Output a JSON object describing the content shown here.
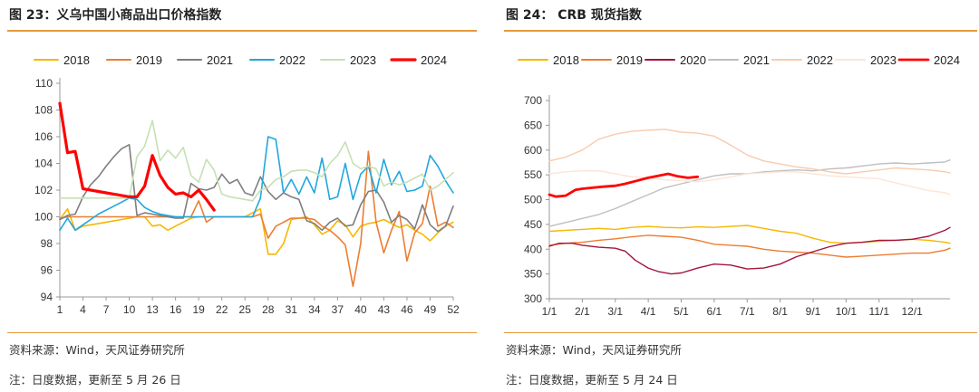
{
  "left": {
    "title": "图 23：义乌中国小商品出口价格指数",
    "source": "资料来源：Wind，天风证券研究所",
    "note": "注：日度数据，更新至 5 月 26 日"
  },
  "right": {
    "title": "图 24：  CRB 现货指数",
    "source": "资料来源：Wind，天风证券研究所",
    "note": "注：日度数据，更新至 5 月 24 日"
  },
  "chart_data": [
    {
      "type": "line",
      "title": "图 23：义乌中国小商品出口价格指数",
      "x_ticks": [
        1,
        4,
        7,
        10,
        13,
        16,
        19,
        22,
        25,
        28,
        31,
        34,
        37,
        40,
        43,
        46,
        49,
        52
      ],
      "xlim": [
        1,
        52
      ],
      "ylim": [
        94,
        110
      ],
      "y_ticks": [
        94,
        96,
        98,
        100,
        102,
        104,
        106,
        108,
        110
      ],
      "legend_position": "top",
      "series": [
        {
          "name": "2018",
          "color": "#F5B800",
          "width": 1.6,
          "x": [
            1,
            2,
            3,
            4,
            5,
            6,
            7,
            8,
            9,
            10,
            11,
            12,
            13,
            14,
            15,
            16,
            17,
            18,
            19,
            20,
            21,
            22,
            23,
            24,
            25,
            26,
            27,
            28,
            29,
            30,
            31,
            32,
            33,
            34,
            35,
            36,
            37,
            38,
            39,
            40,
            41,
            42,
            43,
            44,
            45,
            46,
            47,
            48,
            49,
            50,
            51,
            52
          ],
          "values": [
            99.8,
            100.6,
            99.0,
            99.3,
            99.4,
            99.5,
            99.6,
            99.7,
            99.8,
            99.9,
            100.0,
            100.0,
            99.3,
            99.4,
            99.0,
            99.3,
            99.6,
            99.9,
            100.0,
            100.0,
            100.0,
            100.0,
            100.0,
            100.0,
            100.0,
            100.3,
            100.6,
            97.2,
            97.2,
            98.0,
            99.8,
            99.9,
            100.0,
            99.4,
            98.7,
            99.0,
            99.7,
            99.4,
            98.5,
            99.3,
            99.5,
            99.6,
            99.8,
            99.5,
            99.2,
            99.4,
            99.0,
            98.7,
            98.2,
            98.8,
            99.3,
            99.6
          ]
        },
        {
          "name": "2019",
          "color": "#ED7D31",
          "width": 1.6,
          "x": [
            1,
            2,
            3,
            4,
            5,
            6,
            7,
            8,
            9,
            10,
            11,
            12,
            13,
            14,
            15,
            16,
            17,
            18,
            19,
            20,
            21,
            22,
            23,
            24,
            25,
            26,
            27,
            28,
            29,
            30,
            31,
            32,
            33,
            34,
            35,
            36,
            37,
            38,
            39,
            40,
            41,
            42,
            43,
            44,
            45,
            46,
            47,
            48,
            49,
            50,
            51,
            52
          ],
          "values": [
            99.9,
            100.0,
            100.0,
            100.0,
            100.0,
            100.0,
            100.0,
            100.0,
            100.0,
            100.0,
            100.0,
            100.0,
            100.0,
            100.0,
            100.0,
            100.0,
            100.0,
            100.0,
            101.2,
            99.6,
            100.0,
            100.0,
            100.0,
            100.0,
            100.0,
            100.0,
            100.2,
            98.4,
            99.3,
            99.6,
            99.9,
            99.9,
            99.9,
            99.8,
            99.3,
            99.0,
            98.5,
            97.9,
            94.8,
            98.0,
            104.9,
            99.6,
            97.3,
            99.0,
            100.4,
            96.7,
            98.8,
            99.5,
            102.3,
            99.3,
            99.6,
            99.2
          ]
        },
        {
          "name": "2021",
          "color": "#7F7F7F",
          "width": 1.6,
          "x": [
            1,
            2,
            3,
            4,
            5,
            6,
            7,
            8,
            9,
            10,
            11,
            12,
            13,
            14,
            15,
            16,
            17,
            18,
            19,
            20,
            21,
            22,
            23,
            24,
            25,
            26,
            27,
            28,
            29,
            30,
            31,
            32,
            33,
            34,
            35,
            36,
            37,
            38,
            39,
            40,
            41,
            42,
            43,
            44,
            45,
            46,
            47,
            48,
            49,
            50,
            51,
            52
          ],
          "values": [
            99.8,
            100.1,
            100.2,
            101.5,
            102.4,
            103.0,
            103.8,
            104.5,
            105.1,
            105.4,
            100.1,
            100.3,
            100.2,
            100.1,
            100.0,
            99.9,
            99.9,
            102.5,
            102.1,
            102.0,
            102.2,
            103.2,
            102.5,
            102.8,
            101.8,
            101.6,
            103.0,
            101.9,
            101.3,
            101.8,
            101.5,
            101.3,
            99.7,
            99.5,
            99.0,
            99.6,
            99.9,
            99.3,
            99.4,
            100.9,
            101.9,
            102.0,
            101.1,
            99.6,
            100.1,
            99.8,
            99.1,
            100.9,
            99.4,
            98.9,
            99.3,
            100.8
          ]
        },
        {
          "name": "2022",
          "color": "#1FA7DF",
          "width": 1.6,
          "x": [
            1,
            2,
            3,
            4,
            5,
            6,
            7,
            8,
            9,
            10,
            11,
            12,
            13,
            14,
            15,
            16,
            17,
            18,
            19,
            20,
            21,
            22,
            23,
            24,
            25,
            26,
            27,
            28,
            29,
            30,
            31,
            32,
            33,
            34,
            35,
            36,
            37,
            38,
            39,
            40,
            41,
            42,
            43,
            44,
            45,
            46,
            47,
            48,
            49,
            50,
            51,
            52
          ],
          "values": [
            99.0,
            99.9,
            99.0,
            99.4,
            99.8,
            100.2,
            100.5,
            100.8,
            101.1,
            101.4,
            101.3,
            100.7,
            100.4,
            100.2,
            100.1,
            100.0,
            100.0,
            100.0,
            100.0,
            100.0,
            100.0,
            100.0,
            100.0,
            100.0,
            100.0,
            100.0,
            101.4,
            106.0,
            105.8,
            101.8,
            102.8,
            101.7,
            103.0,
            101.8,
            104.4,
            101.3,
            101.5,
            104.0,
            101.3,
            103.2,
            103.8,
            101.8,
            104.3,
            102.4,
            103.4,
            101.9,
            102.0,
            102.3,
            104.6,
            103.8,
            102.7,
            101.8
          ]
        },
        {
          "name": "2023",
          "color": "#C5E0B4",
          "width": 1.6,
          "x": [
            1,
            2,
            3,
            4,
            5,
            6,
            7,
            8,
            9,
            10,
            11,
            12,
            13,
            14,
            15,
            16,
            17,
            18,
            19,
            20,
            21,
            22,
            23,
            24,
            25,
            26,
            27,
            28,
            29,
            30,
            31,
            32,
            33,
            34,
            35,
            36,
            37,
            38,
            39,
            40,
            41,
            42,
            43,
            44,
            45,
            46,
            47,
            48,
            49,
            50,
            51,
            52
          ],
          "values": [
            101.4,
            101.4,
            101.4,
            101.4,
            101.4,
            101.4,
            101.4,
            101.4,
            101.4,
            101.4,
            104.5,
            105.3,
            107.2,
            104.2,
            105.0,
            104.4,
            105.2,
            103.1,
            102.6,
            104.3,
            103.5,
            101.7,
            101.5,
            101.4,
            101.3,
            101.2,
            102.0,
            102.2,
            102.8,
            103.0,
            103.4,
            103.5,
            103.5,
            103.3,
            103.0,
            104.0,
            104.6,
            105.6,
            104.0,
            103.6,
            103.8,
            103.6,
            102.3,
            102.6,
            102.4,
            102.6,
            102.9,
            103.2,
            102.0,
            102.3,
            102.8,
            103.3
          ]
        },
        {
          "name": "2024",
          "color": "#FF0000",
          "width": 3.2,
          "x": [
            1,
            2,
            3,
            4,
            5,
            6,
            7,
            8,
            9,
            10,
            11,
            12,
            13,
            14,
            15,
            16,
            17,
            18,
            19,
            20,
            21
          ],
          "values": [
            108.5,
            104.8,
            104.9,
            102.1,
            102.0,
            101.9,
            101.8,
            101.7,
            101.6,
            101.5,
            101.5,
            102.3,
            104.6,
            103.1,
            102.2,
            101.7,
            101.8,
            101.5,
            102.0,
            101.3,
            100.5
          ]
        }
      ]
    },
    {
      "type": "line",
      "title": "图 24：  CRB 现货指数",
      "x_ticks": [
        "1/1",
        "2/1",
        "3/1",
        "4/1",
        "5/1",
        "6/1",
        "7/1",
        "8/1",
        "9/1",
        "10/1",
        "11/1",
        "12/1"
      ],
      "xlim": [
        1,
        13.15
      ],
      "ylim": [
        300,
        700
      ],
      "y_ticks": [
        300,
        350,
        400,
        450,
        500,
        550,
        600,
        650,
        700
      ],
      "legend_position": "top",
      "series": [
        {
          "name": "2018",
          "color": "#F5B800",
          "width": 1.4,
          "x": [
            1,
            1.5,
            2,
            2.5,
            3,
            3.5,
            4,
            4.5,
            5,
            5.5,
            6,
            6.5,
            7,
            7.5,
            8,
            8.5,
            9,
            9.5,
            10,
            10.5,
            11,
            11.5,
            12,
            12.5,
            13,
            13.15
          ],
          "values": [
            436,
            438,
            440,
            442,
            440,
            444,
            446,
            444,
            443,
            445,
            444,
            446,
            448,
            442,
            436,
            432,
            422,
            414,
            412,
            414,
            416,
            418,
            420,
            418,
            414,
            412
          ]
        },
        {
          "name": "2019",
          "color": "#ED7D31",
          "width": 1.4,
          "x": [
            1,
            1.5,
            2,
            2.5,
            3,
            3.5,
            4,
            4.5,
            5,
            5.5,
            6,
            6.5,
            7,
            7.5,
            8,
            8.5,
            9,
            9.5,
            10,
            10.5,
            11,
            11.5,
            12,
            12.5,
            13,
            13.15
          ],
          "values": [
            408,
            412,
            414,
            418,
            421,
            425,
            428,
            426,
            424,
            418,
            410,
            408,
            406,
            400,
            396,
            394,
            392,
            388,
            384,
            386,
            388,
            390,
            392,
            392,
            398,
            402
          ]
        },
        {
          "name": "2020",
          "color": "#A5143C",
          "width": 1.4,
          "x": [
            1,
            1.3,
            1.7,
            2,
            2.5,
            3,
            3.3,
            3.6,
            4,
            4.3,
            4.7,
            5,
            5.5,
            6,
            6.5,
            7,
            7.5,
            8,
            8.5,
            9,
            9.5,
            10,
            10.5,
            11,
            11.5,
            12,
            12.5,
            13,
            13.15
          ],
          "values": [
            406,
            412,
            412,
            408,
            404,
            402,
            396,
            378,
            362,
            355,
            350,
            352,
            362,
            370,
            368,
            360,
            362,
            370,
            385,
            395,
            405,
            412,
            414,
            418,
            418,
            420,
            426,
            438,
            444
          ]
        },
        {
          "name": "2021",
          "color": "#BFBFBF",
          "width": 1.4,
          "x": [
            1,
            1.5,
            2,
            2.5,
            3,
            3.5,
            4,
            4.5,
            5,
            5.5,
            6,
            6.5,
            7,
            7.5,
            8,
            8.5,
            9,
            9.5,
            10,
            10.5,
            11,
            11.5,
            12,
            12.5,
            13,
            13.15
          ],
          "values": [
            446,
            454,
            462,
            470,
            482,
            496,
            510,
            524,
            532,
            540,
            548,
            552,
            552,
            556,
            558,
            560,
            558,
            562,
            564,
            568,
            572,
            574,
            572,
            574,
            576,
            580
          ]
        },
        {
          "name": "2022",
          "color": "#F8CBAD",
          "width": 1.4,
          "x": [
            1,
            1.5,
            2,
            2.5,
            3,
            3.5,
            4,
            4.5,
            5,
            5.5,
            6,
            6.5,
            7,
            7.5,
            8,
            8.5,
            9,
            9.5,
            10,
            10.5,
            11,
            11.5,
            12,
            12.5,
            13,
            13.15
          ],
          "values": [
            578,
            586,
            600,
            622,
            632,
            638,
            640,
            642,
            636,
            634,
            628,
            610,
            590,
            578,
            572,
            566,
            562,
            556,
            552,
            556,
            560,
            564,
            562,
            560,
            556,
            554
          ]
        },
        {
          "name": "2023",
          "color": "#FBE5D6",
          "width": 1.4,
          "x": [
            1,
            1.5,
            2,
            2.5,
            3,
            3.5,
            4,
            4.5,
            5,
            5.5,
            6,
            6.5,
            7,
            7.5,
            8,
            8.5,
            9,
            9.5,
            10,
            10.5,
            11,
            11.5,
            12,
            12.5,
            13,
            13.15
          ],
          "values": [
            552,
            556,
            558,
            558,
            552,
            546,
            544,
            540,
            538,
            536,
            540,
            546,
            552,
            554,
            556,
            556,
            552,
            548,
            546,
            544,
            542,
            534,
            526,
            518,
            514,
            510
          ]
        },
        {
          "name": "2024",
          "color": "#FF0000",
          "width": 2.8,
          "x": [
            1,
            1.2,
            1.5,
            1.8,
            2,
            2.3,
            2.6,
            3,
            3.3,
            3.6,
            4,
            4.3,
            4.6,
            4.9,
            5.2,
            5.5
          ],
          "values": [
            510,
            506,
            508,
            520,
            522,
            524,
            526,
            528,
            532,
            537,
            544,
            548,
            552,
            547,
            544,
            546
          ]
        }
      ]
    }
  ]
}
